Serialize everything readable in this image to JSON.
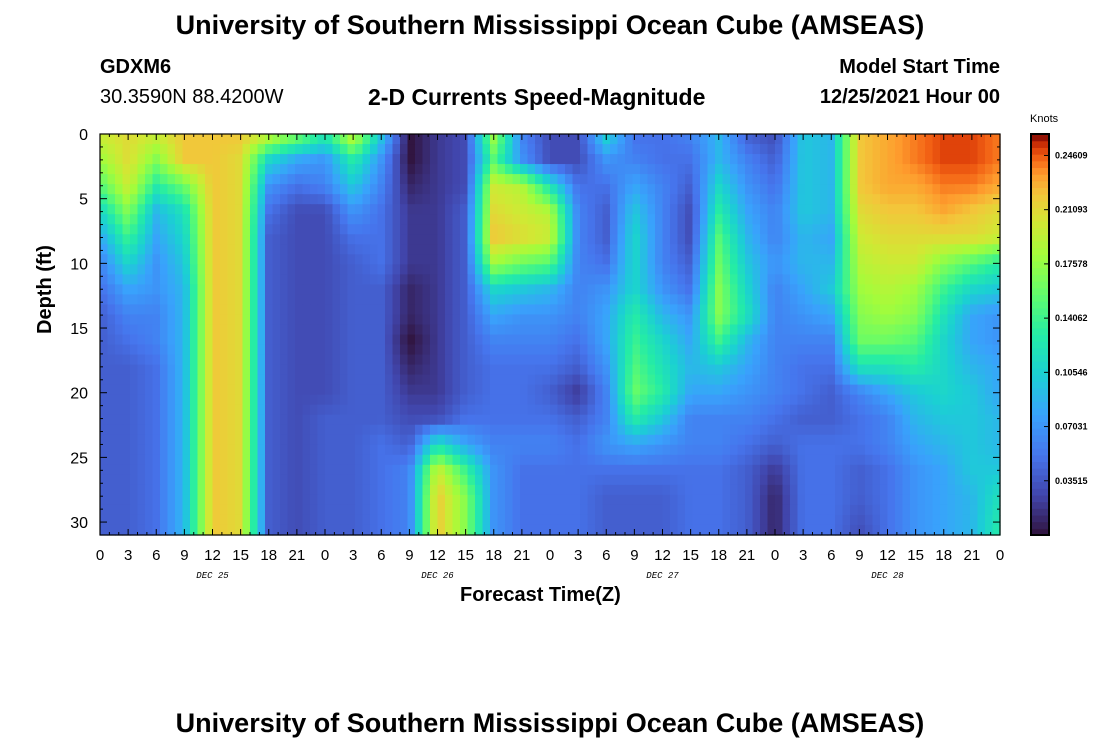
{
  "header": {
    "title": "University of Southern Mississippi Ocean Cube (AMSEAS)",
    "station": "GDXM6",
    "coordinates": "30.3590N  88.4200W",
    "subtitle": "2-D Currents Speed-Magnitude",
    "model_start_label": "Model Start Time",
    "model_start_value": "12/25/2021 Hour 00",
    "footer_title": "University of Southern Mississippi Ocean Cube (AMSEAS)"
  },
  "chart_data": {
    "type": "heatmap",
    "title": "2-D Currents Speed-Magnitude",
    "xlabel": "Forecast Time(Z)",
    "ylabel": "Depth (ft)",
    "x_hours_range": [
      0,
      96
    ],
    "y_depth_range": [
      0,
      31
    ],
    "x_tick_labels": [
      "0",
      "3",
      "6",
      "9",
      "12",
      "15",
      "18",
      "21",
      "0",
      "3",
      "6",
      "9",
      "12",
      "15",
      "18",
      "21",
      "0",
      "3",
      "6",
      "9",
      "12",
      "15",
      "18",
      "21",
      "0",
      "3",
      "6",
      "9",
      "12",
      "15",
      "18",
      "21",
      "0"
    ],
    "y_ticks": [
      0,
      5,
      10,
      15,
      20,
      25,
      30
    ],
    "day_labels": [
      {
        "label": "DEC 25",
        "hour": 12
      },
      {
        "label": "DEC 26",
        "hour": 36
      },
      {
        "label": "DEC 27",
        "hour": 60
      },
      {
        "label": "DEC 28",
        "hour": 84
      }
    ],
    "colorbar": {
      "units": "Knots",
      "range": [
        0.0,
        0.26
      ],
      "tick_values": [
        0.24609,
        0.21093,
        0.17578,
        0.14062,
        0.10546,
        0.07031,
        0.03515
      ],
      "tick_labels": [
        "0.24609",
        "0.21093",
        "0.17578",
        "0.14062",
        "0.10546",
        "0.07031",
        "0.03515"
      ]
    },
    "depth_levels_ft": [
      0,
      2,
      4,
      6,
      8,
      10,
      12,
      14,
      16,
      18,
      20,
      22,
      24,
      26,
      28,
      31
    ],
    "hour_columns": [
      0,
      3,
      6,
      9,
      12,
      15,
      18,
      21,
      24,
      27,
      30,
      33,
      36,
      39,
      42,
      45,
      48,
      51,
      54,
      57,
      60,
      63,
      66,
      69,
      72,
      75,
      78,
      81,
      84,
      87,
      90,
      93,
      96
    ],
    "speed_knots": [
      [
        0.2,
        0.21,
        0.2,
        0.22,
        0.22,
        0.22,
        0.2,
        0.17,
        0.13,
        0.2,
        0.1,
        0.0,
        0.02,
        0.03,
        0.18,
        0.06,
        0.03,
        0.03,
        0.11,
        0.05,
        0.05,
        0.06,
        0.09,
        0.04,
        0.03,
        0.1,
        0.09,
        0.22,
        0.23,
        0.24,
        0.25,
        0.25,
        0.24
      ],
      [
        0.18,
        0.21,
        0.17,
        0.22,
        0.22,
        0.21,
        0.11,
        0.08,
        0.07,
        0.13,
        0.07,
        0.0,
        0.02,
        0.03,
        0.15,
        0.07,
        0.03,
        0.03,
        0.07,
        0.06,
        0.05,
        0.05,
        0.09,
        0.06,
        0.04,
        0.1,
        0.09,
        0.22,
        0.23,
        0.24,
        0.25,
        0.25,
        0.24
      ],
      [
        0.15,
        0.2,
        0.13,
        0.16,
        0.22,
        0.21,
        0.07,
        0.05,
        0.06,
        0.1,
        0.06,
        0.01,
        0.02,
        0.03,
        0.2,
        0.19,
        0.12,
        0.05,
        0.05,
        0.08,
        0.06,
        0.04,
        0.11,
        0.07,
        0.05,
        0.1,
        0.09,
        0.22,
        0.23,
        0.23,
        0.24,
        0.24,
        0.23
      ],
      [
        0.11,
        0.17,
        0.09,
        0.12,
        0.22,
        0.21,
        0.05,
        0.03,
        0.03,
        0.07,
        0.05,
        0.02,
        0.02,
        0.04,
        0.21,
        0.2,
        0.19,
        0.06,
        0.04,
        0.1,
        0.06,
        0.03,
        0.13,
        0.08,
        0.06,
        0.1,
        0.09,
        0.21,
        0.22,
        0.22,
        0.23,
        0.22,
        0.21
      ],
      [
        0.08,
        0.14,
        0.08,
        0.11,
        0.22,
        0.21,
        0.04,
        0.03,
        0.03,
        0.05,
        0.05,
        0.02,
        0.02,
        0.04,
        0.22,
        0.21,
        0.2,
        0.06,
        0.04,
        0.11,
        0.06,
        0.03,
        0.15,
        0.09,
        0.06,
        0.09,
        0.08,
        0.2,
        0.21,
        0.21,
        0.21,
        0.21,
        0.2
      ],
      [
        0.06,
        0.11,
        0.07,
        0.1,
        0.22,
        0.21,
        0.04,
        0.03,
        0.03,
        0.04,
        0.05,
        0.02,
        0.02,
        0.04,
        0.18,
        0.16,
        0.15,
        0.06,
        0.05,
        0.11,
        0.06,
        0.04,
        0.16,
        0.1,
        0.07,
        0.09,
        0.09,
        0.19,
        0.2,
        0.2,
        0.17,
        0.15,
        0.13
      ],
      [
        0.05,
        0.08,
        0.07,
        0.09,
        0.22,
        0.21,
        0.04,
        0.03,
        0.03,
        0.04,
        0.04,
        0.01,
        0.02,
        0.04,
        0.11,
        0.1,
        0.09,
        0.06,
        0.07,
        0.11,
        0.07,
        0.05,
        0.17,
        0.11,
        0.06,
        0.08,
        0.1,
        0.18,
        0.19,
        0.18,
        0.14,
        0.11,
        0.1
      ],
      [
        0.04,
        0.06,
        0.06,
        0.09,
        0.22,
        0.21,
        0.04,
        0.03,
        0.03,
        0.04,
        0.04,
        0.01,
        0.02,
        0.04,
        0.08,
        0.07,
        0.07,
        0.06,
        0.08,
        0.13,
        0.09,
        0.07,
        0.17,
        0.12,
        0.06,
        0.07,
        0.08,
        0.17,
        0.18,
        0.17,
        0.12,
        0.08,
        0.07
      ],
      [
        0.04,
        0.05,
        0.06,
        0.09,
        0.22,
        0.21,
        0.04,
        0.03,
        0.03,
        0.04,
        0.04,
        0.0,
        0.02,
        0.04,
        0.06,
        0.06,
        0.06,
        0.05,
        0.08,
        0.14,
        0.11,
        0.08,
        0.14,
        0.09,
        0.06,
        0.06,
        0.06,
        0.16,
        0.16,
        0.15,
        0.11,
        0.08,
        0.07
      ],
      [
        0.04,
        0.04,
        0.05,
        0.09,
        0.22,
        0.21,
        0.04,
        0.03,
        0.03,
        0.04,
        0.04,
        0.01,
        0.02,
        0.04,
        0.05,
        0.05,
        0.05,
        0.04,
        0.07,
        0.15,
        0.12,
        0.09,
        0.1,
        0.08,
        0.06,
        0.05,
        0.05,
        0.12,
        0.12,
        0.13,
        0.11,
        0.09,
        0.08
      ],
      [
        0.04,
        0.04,
        0.05,
        0.09,
        0.22,
        0.21,
        0.04,
        0.03,
        0.03,
        0.04,
        0.04,
        0.02,
        0.02,
        0.04,
        0.05,
        0.05,
        0.04,
        0.02,
        0.06,
        0.16,
        0.13,
        0.08,
        0.08,
        0.07,
        0.06,
        0.05,
        0.04,
        0.06,
        0.08,
        0.1,
        0.11,
        0.1,
        0.08
      ],
      [
        0.04,
        0.04,
        0.05,
        0.09,
        0.22,
        0.21,
        0.04,
        0.03,
        0.04,
        0.04,
        0.04,
        0.03,
        0.03,
        0.05,
        0.05,
        0.05,
        0.05,
        0.04,
        0.06,
        0.13,
        0.1,
        0.06,
        0.06,
        0.06,
        0.05,
        0.04,
        0.04,
        0.05,
        0.06,
        0.09,
        0.1,
        0.1,
        0.09
      ],
      [
        0.04,
        0.04,
        0.05,
        0.09,
        0.22,
        0.21,
        0.04,
        0.03,
        0.04,
        0.04,
        0.05,
        0.04,
        0.12,
        0.08,
        0.06,
        0.06,
        0.06,
        0.05,
        0.07,
        0.08,
        0.07,
        0.06,
        0.06,
        0.05,
        0.04,
        0.05,
        0.05,
        0.05,
        0.06,
        0.08,
        0.09,
        0.1,
        0.09
      ],
      [
        0.04,
        0.04,
        0.05,
        0.09,
        0.22,
        0.21,
        0.04,
        0.03,
        0.04,
        0.04,
        0.05,
        0.06,
        0.2,
        0.14,
        0.07,
        0.05,
        0.05,
        0.05,
        0.05,
        0.05,
        0.05,
        0.05,
        0.05,
        0.04,
        0.02,
        0.05,
        0.05,
        0.04,
        0.05,
        0.07,
        0.08,
        0.1,
        0.1
      ],
      [
        0.04,
        0.04,
        0.05,
        0.09,
        0.22,
        0.21,
        0.04,
        0.03,
        0.04,
        0.04,
        0.05,
        0.06,
        0.22,
        0.17,
        0.07,
        0.05,
        0.05,
        0.05,
        0.04,
        0.04,
        0.04,
        0.05,
        0.05,
        0.04,
        0.01,
        0.05,
        0.05,
        0.04,
        0.05,
        0.07,
        0.08,
        0.09,
        0.12
      ],
      [
        0.04,
        0.04,
        0.05,
        0.09,
        0.22,
        0.21,
        0.04,
        0.03,
        0.04,
        0.04,
        0.05,
        0.06,
        0.22,
        0.17,
        0.07,
        0.05,
        0.05,
        0.05,
        0.04,
        0.04,
        0.04,
        0.05,
        0.05,
        0.04,
        0.01,
        0.05,
        0.05,
        0.03,
        0.05,
        0.07,
        0.08,
        0.09,
        0.13
      ]
    ]
  }
}
